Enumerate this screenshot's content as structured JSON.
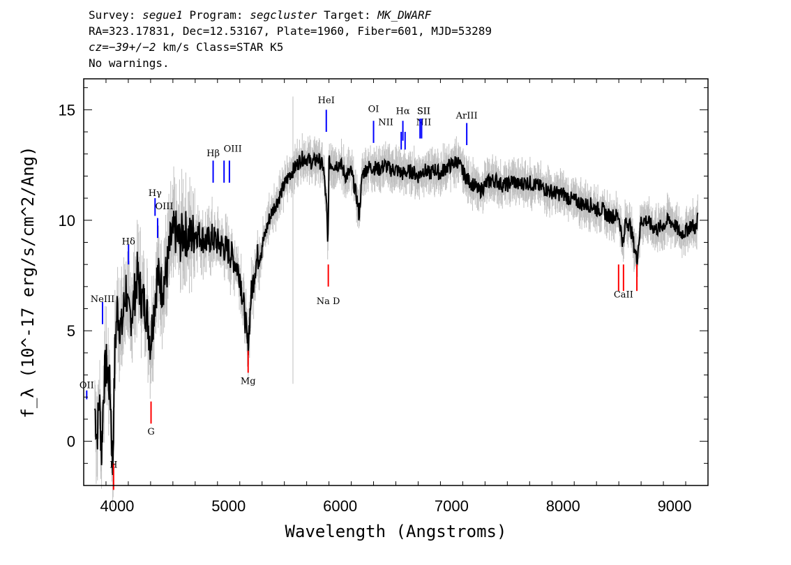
{
  "header": {
    "line1": {
      "survey_label": "Survey: ",
      "survey": "segue1",
      "program_label": " Program: ",
      "program": "segcluster",
      "target_label": " Target: ",
      "target": "MK_DWARF"
    },
    "line2": "RA=323.17831, Dec=12.53167, Plate=1960, Fiber=601, MJD=53289",
    "line3": {
      "cz_label": "cz=",
      "cz": "−39+/−2",
      "cz_unit": " km/s Class=STAR K5"
    },
    "line4": "No warnings."
  },
  "chart_data": {
    "type": "line",
    "xlabel": "Wavelength (Angstroms)",
    "ylabel": "f_λ (10^-17 erg/s/cm^2/Ang)",
    "xlim": [
      3700,
      9300
    ],
    "ylim": [
      -2,
      16.4
    ],
    "xticks": [
      4000,
      5000,
      6000,
      7000,
      8000,
      9000
    ],
    "yticks": [
      0,
      5,
      10,
      15
    ],
    "colors": {
      "spectrum": "#000000",
      "error": "#c0c0c0",
      "emission": "#0000ff",
      "absorption": "#ff0000"
    },
    "series": [
      {
        "name": "",
        "x": [
          3800,
          3820,
          3840,
          3860,
          3880,
          3900,
          3920,
          3940,
          3960,
          3980,
          4000,
          4040,
          4080,
          4100,
          4140,
          4180,
          4220,
          4260,
          4300,
          4330,
          4360,
          4400,
          4440,
          4480,
          4520,
          4560,
          4600,
          4650,
          4700,
          4750,
          4800,
          4850,
          4900,
          4950,
          5000,
          5050,
          5100,
          5150,
          5170,
          5183,
          5200,
          5240,
          5280,
          5320,
          5360,
          5400,
          5450,
          5500,
          5550,
          5600,
          5650,
          5700,
          5750,
          5800,
          5850,
          5880,
          5890,
          5900,
          5950,
          6000,
          6050,
          6100,
          6150,
          6170,
          6200,
          6250,
          6300,
          6350,
          6400,
          6450,
          6500,
          6560,
          6600,
          6650,
          6700,
          6750,
          6800,
          6850,
          6900,
          6950,
          7000,
          7050,
          7100,
          7150,
          7200,
          7250,
          7300,
          7350,
          7400,
          7450,
          7500,
          7550,
          7600,
          7650,
          7700,
          7750,
          7800,
          7850,
          7900,
          7950,
          8000,
          8050,
          8100,
          8150,
          8200,
          8250,
          8300,
          8350,
          8400,
          8450,
          8500,
          8542,
          8560,
          8600,
          8662,
          8700,
          8750,
          8800,
          8850,
          8900,
          8950,
          9000,
          9050,
          9100,
          9150,
          9200,
          9210
        ],
        "values": [
          1.5,
          0.2,
          2.0,
          -0.5,
          2.5,
          3.5,
          3.0,
          2.0,
          -1.2,
          4.0,
          6.0,
          5.0,
          7.0,
          5.5,
          6.0,
          7.5,
          6.5,
          6.0,
          4.5,
          6.0,
          7.5,
          7.0,
          7.5,
          9.0,
          9.5,
          9.0,
          9.5,
          9.2,
          9.5,
          9.3,
          9.0,
          9.2,
          9.0,
          8.8,
          8.6,
          8.2,
          7.6,
          5.5,
          4.2,
          5.0,
          6.5,
          8.0,
          8.6,
          9.2,
          10.0,
          10.5,
          11.0,
          11.6,
          12.1,
          12.4,
          12.8,
          12.8,
          12.6,
          12.8,
          12.4,
          10.5,
          8.5,
          12.6,
          12.5,
          12.6,
          12.0,
          12.2,
          11.0,
          10.2,
          12.1,
          12.4,
          12.4,
          12.3,
          12.5,
          12.3,
          12.3,
          12.1,
          12.2,
          12.2,
          12.0,
          12.3,
          12.1,
          12.3,
          12.1,
          12.4,
          12.5,
          12.7,
          12.2,
          11.8,
          11.6,
          11.3,
          11.6,
          11.8,
          11.8,
          11.6,
          11.6,
          11.8,
          11.6,
          11.7,
          11.7,
          11.6,
          11.5,
          11.4,
          11.3,
          11.2,
          11.2,
          11.0,
          10.9,
          10.8,
          10.7,
          10.7,
          10.5,
          10.5,
          10.2,
          10.2,
          10.2,
          8.8,
          10.0,
          9.8,
          8.2,
          10.0,
          10.0,
          9.7,
          9.6,
          9.8,
          10.0,
          9.8,
          9.4,
          9.5,
          9.8,
          9.6,
          10.6
        ]
      }
    ],
    "line_labels": [
      {
        "label": "OII",
        "wavelength": 3727,
        "kind": "emission"
      },
      {
        "label": "NeIII",
        "wavelength": 3869,
        "kind": "emission"
      },
      {
        "label": "Hδ",
        "wavelength": 4102,
        "kind": "emission"
      },
      {
        "label": "Hγ",
        "wavelength": 4340,
        "kind": "emission"
      },
      {
        "label": "OIII",
        "wavelength": 4363,
        "kind": "emission"
      },
      {
        "label": "Hβ",
        "wavelength": 4861,
        "kind": "emission"
      },
      {
        "label": "OIII",
        "wavelength": 4959,
        "kind": "emission"
      },
      {
        "label": "OIII",
        "wavelength": 5007,
        "kind": "emission"
      },
      {
        "label": "HeI",
        "wavelength": 5876,
        "kind": "emission"
      },
      {
        "label": "OI",
        "wavelength": 6300,
        "kind": "emission"
      },
      {
        "label": "NII",
        "wavelength": 6548,
        "kind": "emission"
      },
      {
        "label": "Hα",
        "wavelength": 6563,
        "kind": "emission"
      },
      {
        "label": "NII",
        "wavelength": 6583,
        "kind": "emission"
      },
      {
        "label": "SII",
        "wavelength": 6717,
        "kind": "emission"
      },
      {
        "label": "SII",
        "wavelength": 6731,
        "kind": "emission"
      },
      {
        "label": "ArIII",
        "wavelength": 7136,
        "kind": "emission"
      },
      {
        "label": "H",
        "wavelength": 3968,
        "kind": "absorption"
      },
      {
        "label": "G",
        "wavelength": 4304,
        "kind": "absorption"
      },
      {
        "label": "Mg",
        "wavelength": 5175,
        "kind": "absorption"
      },
      {
        "label": "Na D",
        "wavelength": 5894,
        "kind": "absorption"
      },
      {
        "label": "CaII",
        "wavelength": 8498,
        "kind": "absorption"
      },
      {
        "label": "CaII",
        "wavelength": 8542,
        "kind": "absorption"
      },
      {
        "label": "CaII",
        "wavelength": 8662,
        "kind": "absorption"
      }
    ]
  }
}
